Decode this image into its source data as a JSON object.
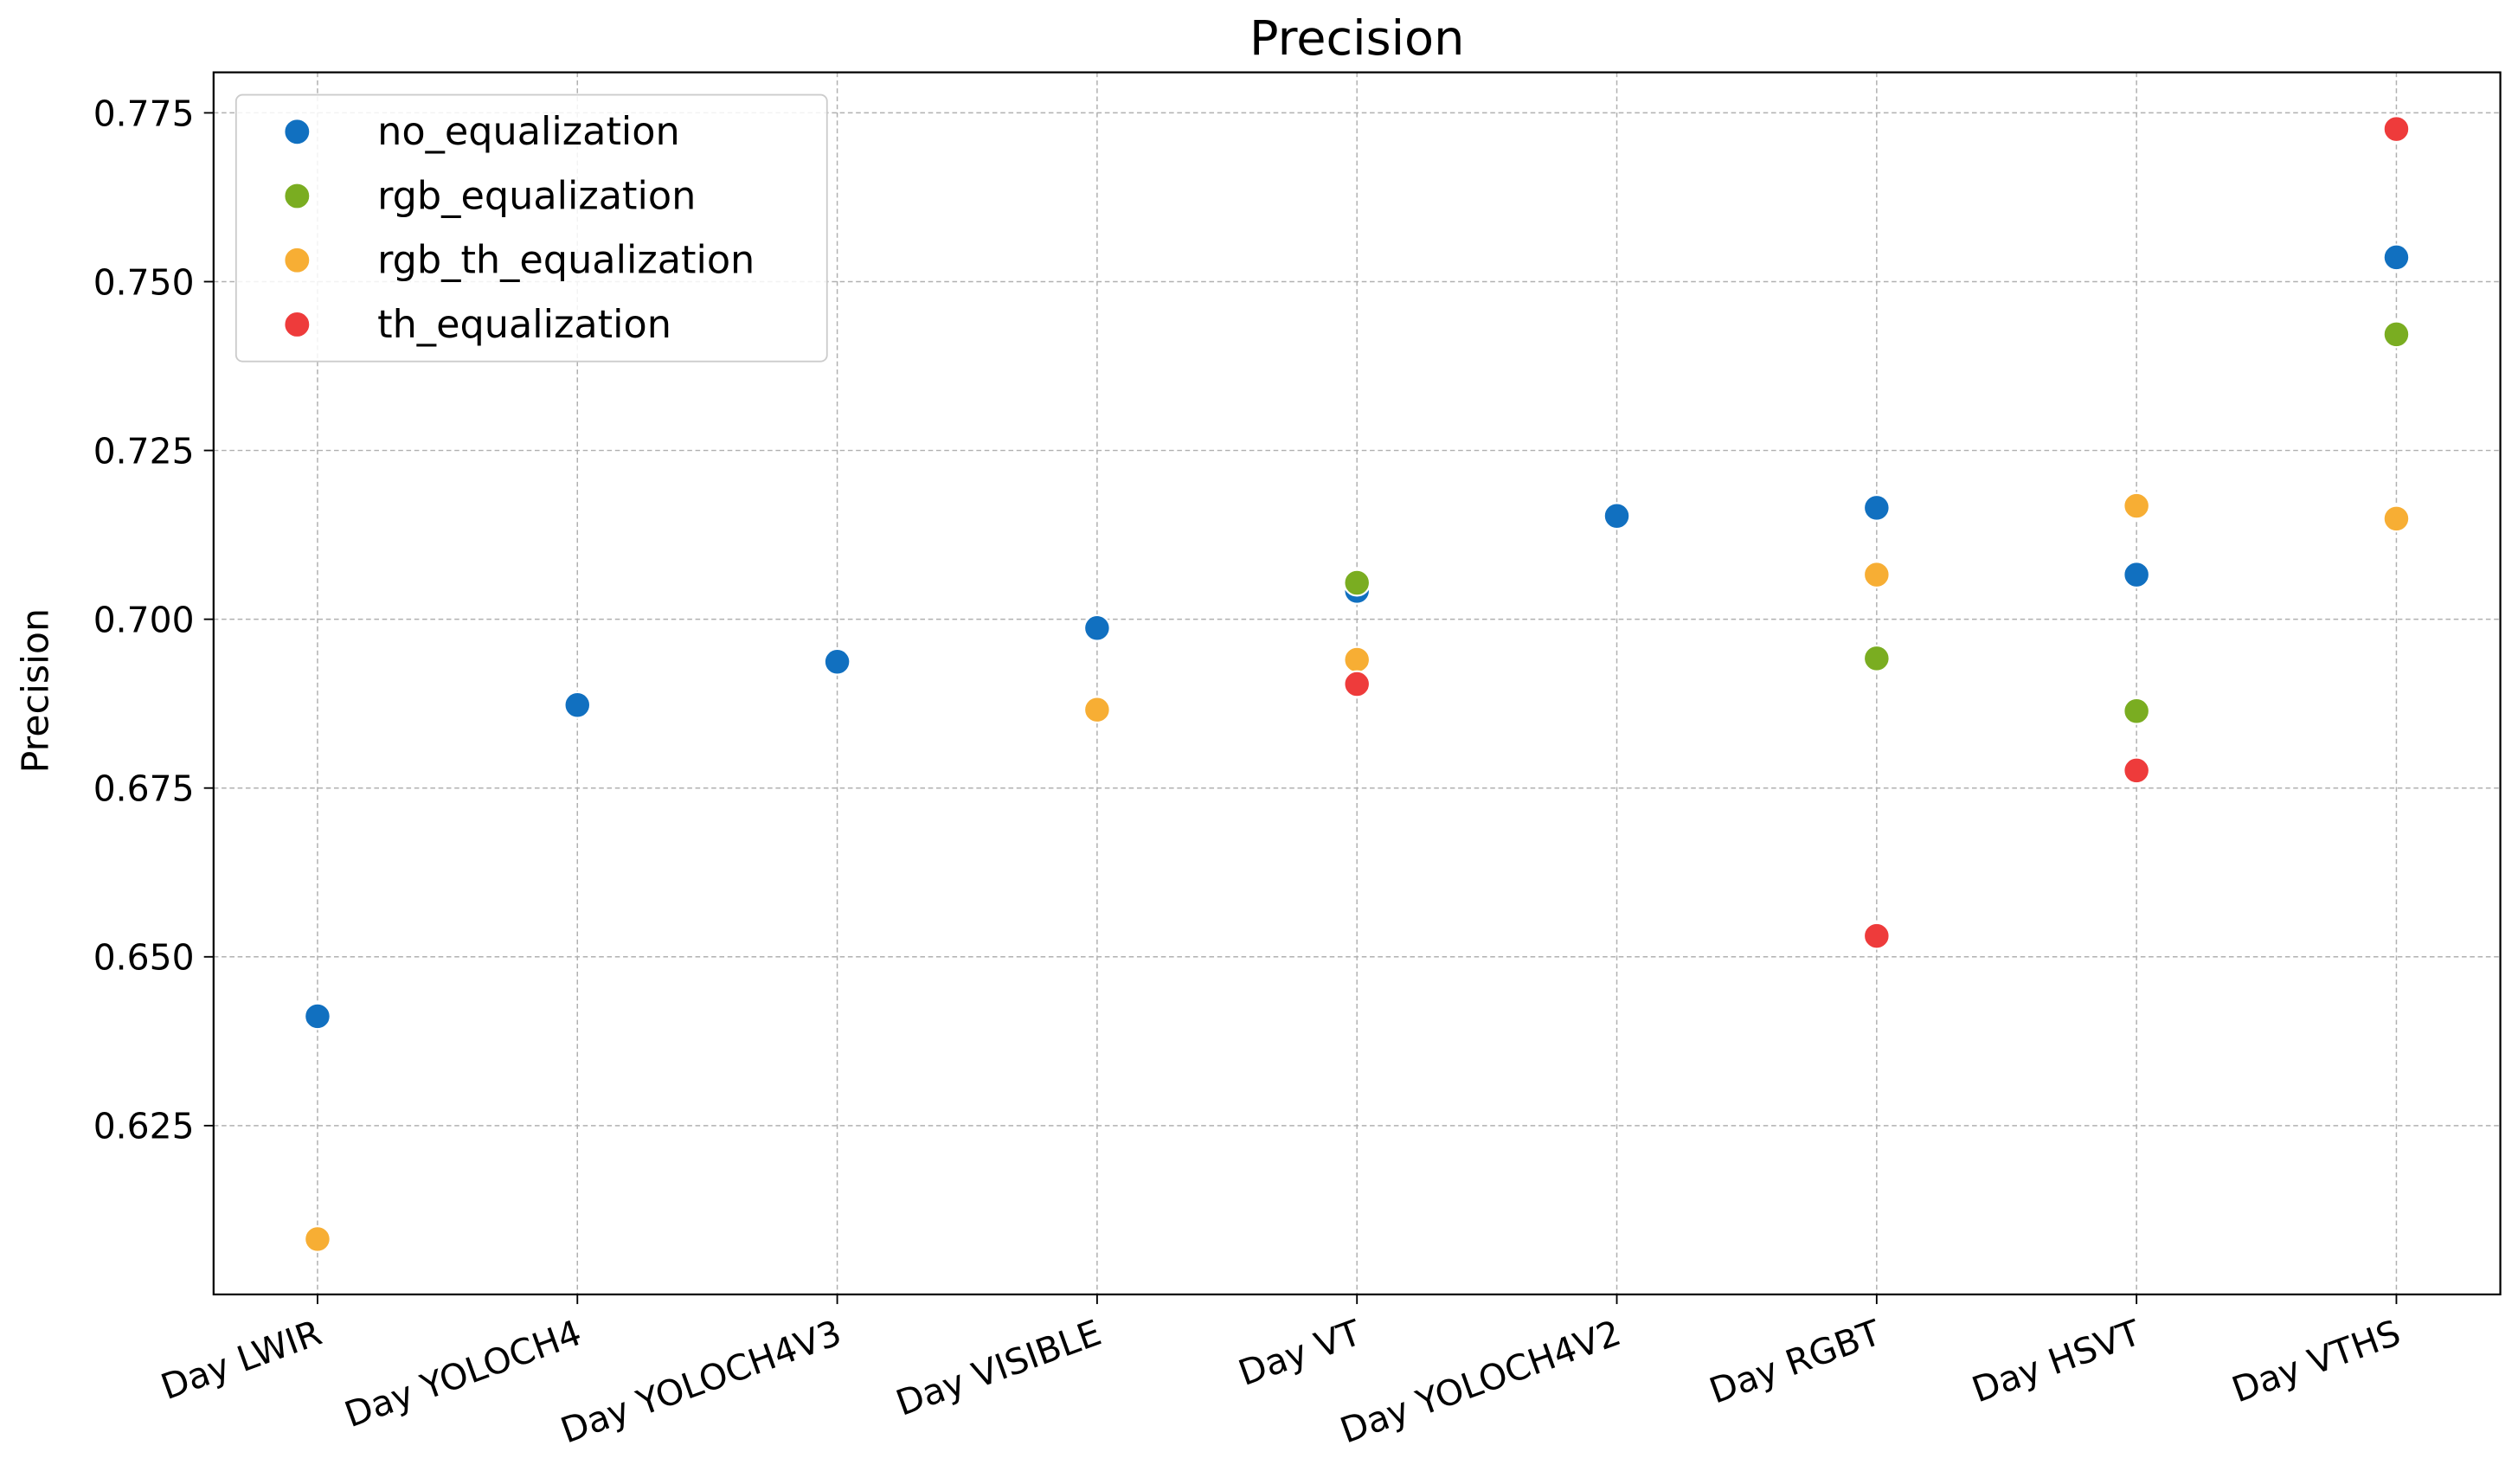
{
  "chart_data": {
    "type": "scatter",
    "title": "Precision",
    "y_label": "Precision",
    "categories": [
      "Day LWIR",
      "Day YOLOCH4",
      "Day YOLOCH4V3",
      "Day VISIBLE",
      "Day VT",
      "Day YOLOCH4V2",
      "Day RGBT",
      "Day HSVT",
      "Day VTHS"
    ],
    "series": [
      {
        "name": "no_equalization",
        "color": "#1170c0",
        "values": [
          0.6412,
          0.6873,
          0.6937,
          0.6987,
          0.7042,
          0.7153,
          0.7165,
          0.7066,
          0.7536
        ]
      },
      {
        "name": "rgb_equalization",
        "color": "#7aad21",
        "values": [
          null,
          null,
          null,
          null,
          0.7054,
          null,
          0.6942,
          0.6864,
          0.7422
        ]
      },
      {
        "name": "rgb_th_equalization",
        "color": "#f7ae34",
        "values": [
          0.6082,
          null,
          null,
          0.6866,
          0.694,
          null,
          0.7066,
          0.7168,
          0.7149
        ]
      },
      {
        "name": "th_equalization",
        "color": "#ee3b3b",
        "values": [
          null,
          null,
          null,
          null,
          0.6904,
          null,
          0.6531,
          0.6776,
          0.7726
        ]
      }
    ],
    "ylim": [
      0.6,
      0.781
    ],
    "yticks": [
      {
        "value": 0.625,
        "label": "0.625"
      },
      {
        "value": 0.65,
        "label": "0.650"
      },
      {
        "value": 0.675,
        "label": "0.675"
      },
      {
        "value": 0.7,
        "label": "0.700"
      },
      {
        "value": 0.725,
        "label": "0.725"
      },
      {
        "value": 0.75,
        "label": "0.750"
      },
      {
        "value": 0.775,
        "label": "0.775"
      }
    ],
    "grid": true,
    "legend": "upper-left"
  }
}
